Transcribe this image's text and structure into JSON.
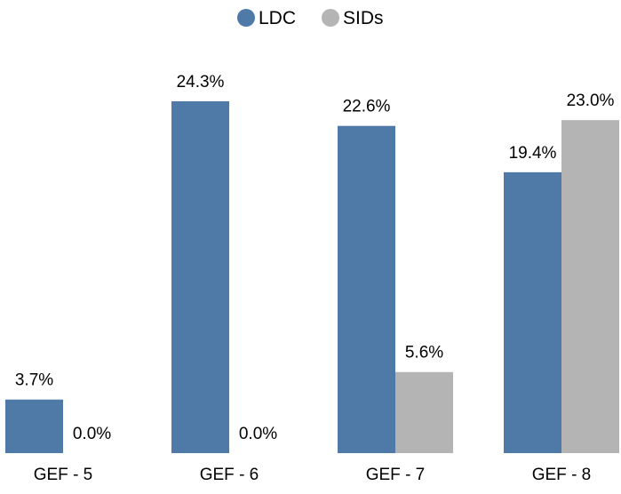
{
  "chart_data": {
    "type": "bar",
    "categories": [
      "GEF - 5",
      "GEF - 6",
      "GEF - 7",
      "GEF - 8"
    ],
    "series": [
      {
        "name": "LDC",
        "values": [
          3.7,
          24.3,
          22.6,
          19.4
        ],
        "labels": [
          "3.7%",
          "24.3%",
          "22.6%",
          "19.4%"
        ],
        "color": "#4f7aa8"
      },
      {
        "name": "SIDs",
        "values": [
          0.0,
          0.0,
          5.6,
          23.0
        ],
        "labels": [
          "0.0%",
          "0.0%",
          "5.6%",
          "23.0%"
        ],
        "color": "#b4b4b4"
      }
    ],
    "title": "",
    "xlabel": "",
    "ylabel": "",
    "unit": "%",
    "ylim": [
      0,
      24.3
    ],
    "grid": false,
    "legend_position": "top-center"
  }
}
